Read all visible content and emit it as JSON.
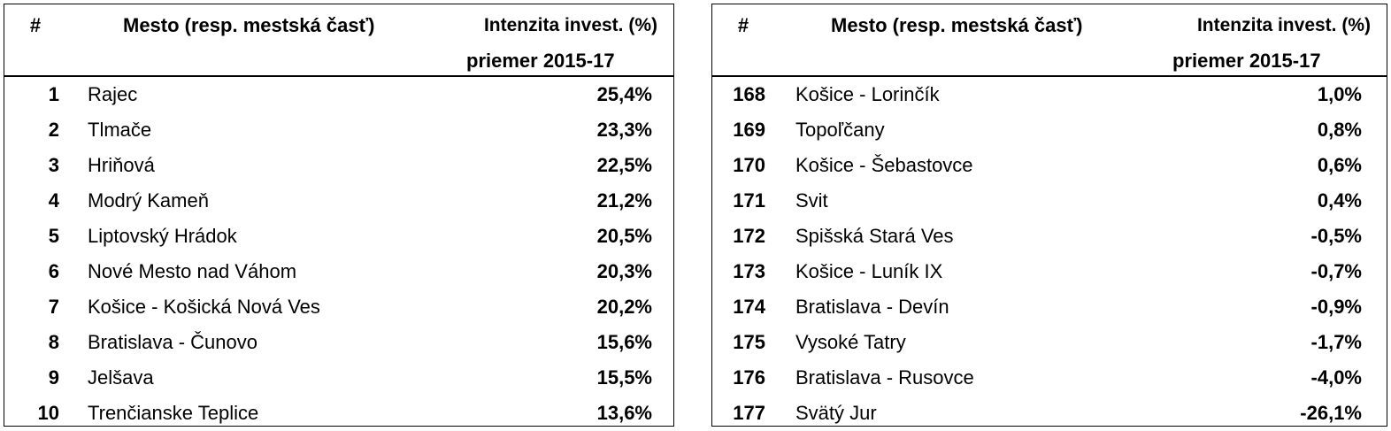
{
  "header": {
    "num": "#",
    "city": "Mesto (resp. mestská časť)",
    "intensity_line1": "Intenzita invest. (%)",
    "intensity_line2": "priemer 2015-17"
  },
  "left_table": {
    "rows": [
      {
        "rank": "1",
        "city": "Rajec",
        "value": "25,4%"
      },
      {
        "rank": "2",
        "city": "Tlmače",
        "value": "23,3%"
      },
      {
        "rank": "3",
        "city": "Hriňová",
        "value": "22,5%"
      },
      {
        "rank": "4",
        "city": "Modrý Kameň",
        "value": "21,2%"
      },
      {
        "rank": "5",
        "city": "Liptovský Hrádok",
        "value": "20,5%"
      },
      {
        "rank": "6",
        "city": "Nové Mesto nad Váhom",
        "value": "20,3%"
      },
      {
        "rank": "7",
        "city": "Košice - Košická Nová Ves",
        "value": "20,2%"
      },
      {
        "rank": "8",
        "city": "Bratislava - Čunovo",
        "value": "15,6%"
      },
      {
        "rank": "9",
        "city": "Jelšava",
        "value": "15,5%"
      },
      {
        "rank": "10",
        "city": "Trenčianske Teplice",
        "value": "13,6%"
      }
    ]
  },
  "right_table": {
    "rows": [
      {
        "rank": "168",
        "city": "Košice - Lorinčík",
        "value": "1,0%"
      },
      {
        "rank": "169",
        "city": "Topoľčany",
        "value": "0,8%"
      },
      {
        "rank": "170",
        "city": "Košice - Šebastovce",
        "value": "0,6%"
      },
      {
        "rank": "171",
        "city": "Svit",
        "value": "0,4%"
      },
      {
        "rank": "172",
        "city": "Spišská Stará Ves",
        "value": "-0,5%"
      },
      {
        "rank": "173",
        "city": "Košice - Luník IX",
        "value": "-0,7%"
      },
      {
        "rank": "174",
        "city": "Bratislava - Devín",
        "value": "-0,9%"
      },
      {
        "rank": "175",
        "city": "Vysoké Tatry",
        "value": "-1,7%"
      },
      {
        "rank": "176",
        "city": "Bratislava - Rusovce",
        "value": "-4,0%"
      },
      {
        "rank": "177",
        "city": "Svätý Jur",
        "value": "-26,1%"
      }
    ]
  }
}
